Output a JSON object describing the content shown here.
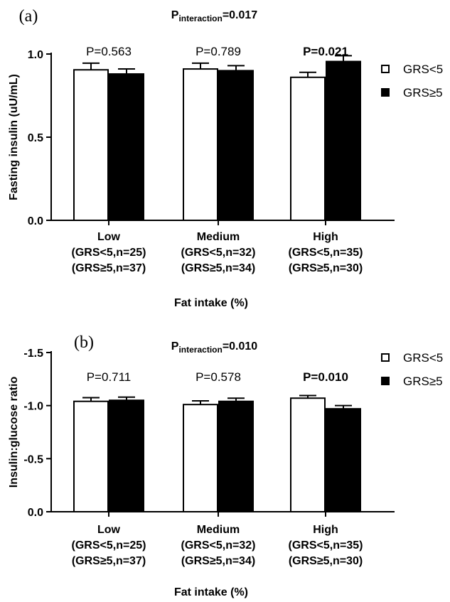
{
  "chart_data": [
    {
      "type": "bar",
      "panel_label": "(a)",
      "p_interaction": {
        "prefix": "P",
        "subscript": "interaction",
        "value": "=0.017"
      },
      "ylabel": "Fasting insulin (uU/mL)",
      "xlabel": "Fat intake (%)",
      "ylim": [
        0,
        1.0
      ],
      "yticks": [
        "0.0",
        "0.5",
        "1.0"
      ],
      "categories": [
        {
          "name": "Low",
          "n1": "(GRS<5,n=25)",
          "n2": "(GRS≥5,n=37)"
        },
        {
          "name": "Medium",
          "n1": "(GRS<5,n=32)",
          "n2": "(GRS≥5,n=34)"
        },
        {
          "name": "High",
          "n1": "(GRS<5,n=35)",
          "n2": "(GRS≥5,n=30)"
        }
      ],
      "series": [
        {
          "name": "GRS<5",
          "color": "#ffffff",
          "values": [
            0.905,
            0.91,
            0.86
          ],
          "errors": [
            0.04,
            0.035,
            0.03
          ]
        },
        {
          "name": "GRS≥5",
          "color": "#000000",
          "values": [
            0.88,
            0.9,
            0.955
          ],
          "errors": [
            0.03,
            0.03,
            0.035
          ]
        }
      ],
      "p_values": [
        {
          "text": "P=0.563",
          "bold": false
        },
        {
          "text": "P=0.789",
          "bold": false
        },
        {
          "text": "P=0.021",
          "bold": true
        }
      ],
      "legend_position": "right"
    },
    {
      "type": "bar",
      "panel_label": "(b)",
      "p_interaction": {
        "prefix": "P",
        "subscript": "interaction",
        "value": "=0.010"
      },
      "ylabel": "Insulin:glucose ratio",
      "xlabel": "Fat intake (%)",
      "ylim": [
        0,
        -1.5
      ],
      "yticks": [
        "0.0",
        "-0.5",
        "-1.0",
        "-1.5"
      ],
      "categories": [
        {
          "name": "Low",
          "n1": "(GRS<5,n=25)",
          "n2": "(GRS≥5,n=37)"
        },
        {
          "name": "Medium",
          "n1": "(GRS<5,n=32)",
          "n2": "(GRS≥5,n=34)"
        },
        {
          "name": "High",
          "n1": "(GRS<5,n=35)",
          "n2": "(GRS≥5,n=30)"
        }
      ],
      "series": [
        {
          "name": "GRS<5",
          "color": "#ffffff",
          "values": [
            -1.04,
            -1.01,
            -1.07
          ],
          "errors": [
            0.035,
            0.035,
            0.025
          ]
        },
        {
          "name": "GRS≥5",
          "color": "#000000",
          "values": [
            -1.05,
            -1.04,
            -0.97
          ],
          "errors": [
            0.03,
            0.03,
            0.03
          ]
        }
      ],
      "p_values": [
        {
          "text": "P=0.711",
          "bold": false
        },
        {
          "text": "P=0.578",
          "bold": false
        },
        {
          "text": "P=0.010",
          "bold": true
        }
      ],
      "legend_position": "right"
    }
  ]
}
